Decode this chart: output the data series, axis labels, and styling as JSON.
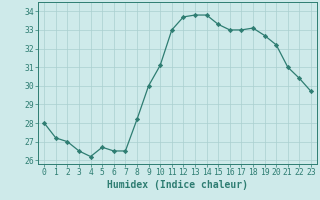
{
  "x": [
    0,
    1,
    2,
    3,
    4,
    5,
    6,
    7,
    8,
    9,
    10,
    11,
    12,
    13,
    14,
    15,
    16,
    17,
    18,
    19,
    20,
    21,
    22,
    23
  ],
  "y": [
    28.0,
    27.2,
    27.0,
    26.5,
    26.2,
    26.7,
    26.5,
    26.5,
    28.2,
    30.0,
    31.1,
    33.0,
    33.7,
    33.8,
    33.8,
    33.3,
    33.0,
    33.0,
    33.1,
    32.7,
    32.2,
    31.0,
    30.4,
    29.7
  ],
  "line_color": "#2e7d72",
  "marker": "D",
  "marker_size": 2.2,
  "bg_color": "#ceeaea",
  "grid_color": "#aacfcf",
  "xlabel": "Humidex (Indice chaleur)",
  "xlim": [
    -0.5,
    23.5
  ],
  "ylim": [
    25.8,
    34.5
  ],
  "yticks": [
    26,
    27,
    28,
    29,
    30,
    31,
    32,
    33,
    34
  ],
  "xticks": [
    0,
    1,
    2,
    3,
    4,
    5,
    6,
    7,
    8,
    9,
    10,
    11,
    12,
    13,
    14,
    15,
    16,
    17,
    18,
    19,
    20,
    21,
    22,
    23
  ],
  "tick_color": "#2e7d72",
  "label_color": "#2e7d72",
  "xlabel_fontsize": 7,
  "tick_fontsize": 5.8
}
